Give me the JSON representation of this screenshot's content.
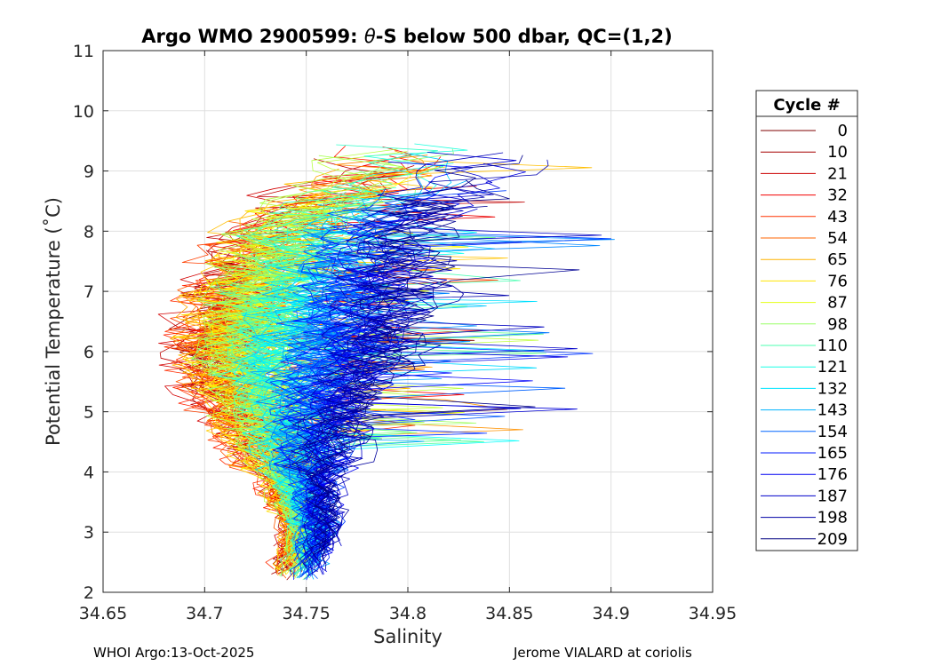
{
  "chart_data": {
    "type": "line",
    "title": "Argo WMO 2900599: θ-S below 500 dbar,  QC=(1,2)",
    "title_prefix": "Argo WMO 2900599: ",
    "title_theta": "θ",
    "title_suffix": "-S below 500 dbar,  QC=(1,2)",
    "xlabel": "Salinity",
    "ylabel": "Potential Temperature (˚C)",
    "xlim": [
      34.65,
      34.95
    ],
    "ylim": [
      2,
      11
    ],
    "xticks": [
      "34.65",
      "34.7",
      "34.75",
      "34.8",
      "34.85",
      "34.9",
      "34.95"
    ],
    "yticks": [
      "2",
      "3",
      "4",
      "5",
      "6",
      "7",
      "8",
      "9",
      "10",
      "11"
    ],
    "grid": true,
    "colormap": "jet",
    "legend": {
      "title": "Cycle #",
      "placement": "outside-right",
      "entries": [
        "0",
        "10",
        "21",
        "32",
        "43",
        "54",
        "65",
        "76",
        "87",
        "98",
        "110",
        "121",
        "132",
        "143",
        "154",
        "165",
        "176",
        "187",
        "198",
        "209"
      ],
      "colors": [
        "#7f0000",
        "#a60000",
        "#cc0000",
        "#f20000",
        "#ff3300",
        "#ff6600",
        "#ffb200",
        "#ffe500",
        "#e5ff1a",
        "#99ff66",
        "#4cffb2",
        "#1affe5",
        "#00e5ff",
        "#00b2ff",
        "#0066ff",
        "#0019ff",
        "#0000f2",
        "#0000cc",
        "#0000a6",
        "#000080"
      ]
    },
    "series_envelope": {
      "description_note": "",
      "salinity_mean_by_cycle_at_temp": {
        "temps": [
          2.3,
          3.0,
          4.0,
          5.0,
          6.0,
          7.0,
          8.0,
          9.0
        ],
        "early": [
          34.735,
          34.745,
          34.735,
          34.71,
          34.7,
          34.71,
          34.725,
          34.78
        ],
        "middle": [
          34.745,
          34.75,
          34.74,
          34.73,
          34.72,
          34.73,
          34.74,
          34.79
        ],
        "late": [
          34.755,
          34.76,
          34.76,
          34.77,
          34.79,
          34.8,
          34.8,
          34.84
        ]
      }
    }
  },
  "footer": {
    "left": "WHOI Argo:13-Oct-2025",
    "right": "Jerome VIALARD at coriolis"
  }
}
